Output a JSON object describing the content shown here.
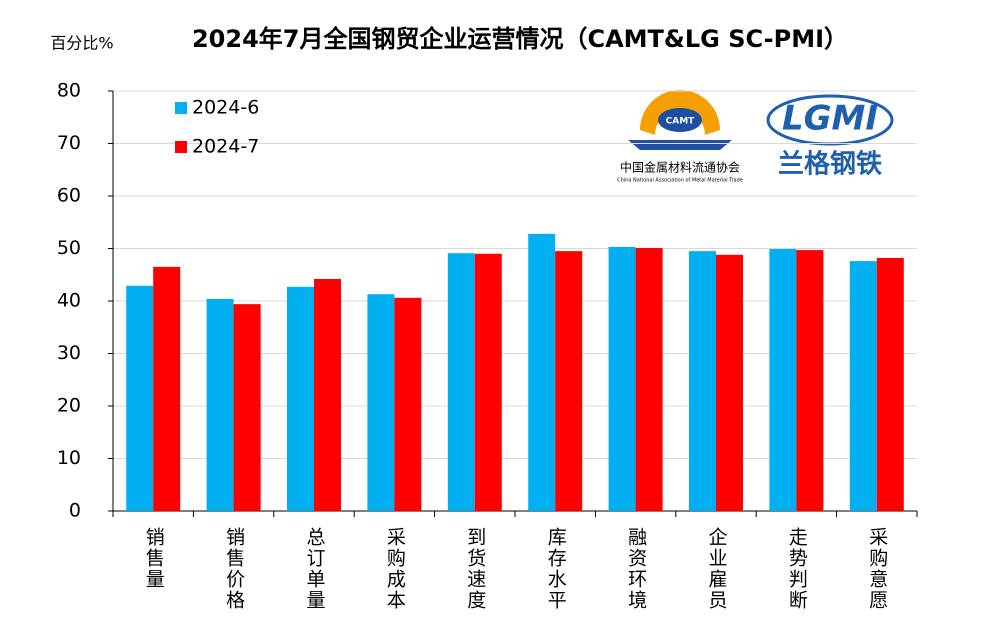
{
  "chart_data": {
    "type": "bar",
    "title": "2024年7月全国钢贸企业运营情况（CAMT&LG SC-PMI）",
    "y_label": "百分比%",
    "categories": [
      "销售量",
      "销售价格",
      "总订单量",
      "采购成本",
      "到货速度",
      "库存水平",
      "融资环境",
      "企业雇员",
      "走势判断",
      "采购意愿"
    ],
    "series": [
      {
        "name": "2024-6",
        "color": "#00b0f0",
        "values": [
          42.9,
          40.4,
          42.7,
          41.3,
          49.1,
          52.8,
          50.3,
          49.5,
          49.9,
          47.6
        ]
      },
      {
        "name": "2024-7",
        "color": "#ff0000",
        "values": [
          46.5,
          39.4,
          44.2,
          40.6,
          49.0,
          49.5,
          50.1,
          48.8,
          49.7,
          48.2
        ]
      }
    ],
    "ylim": [
      0,
      80
    ],
    "yticks": [
      0,
      10,
      20,
      30,
      40,
      50,
      60,
      70,
      80
    ],
    "grid": true,
    "legend": "upper left",
    "logos": {
      "camt_badge": "CAMT",
      "camt_name": "中国金属材料流通协会",
      "camt_english": "China National Association of Metal Material Trade",
      "lg_badge": "LGMI",
      "lg_name": "兰格钢铁"
    }
  }
}
